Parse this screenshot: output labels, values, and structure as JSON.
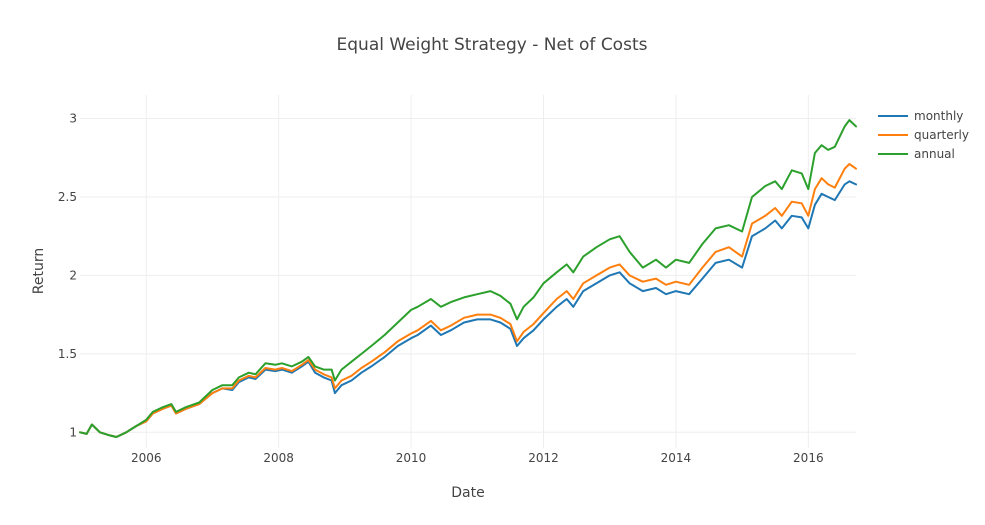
{
  "chart_data": {
    "type": "line",
    "title": "Equal Weight Strategy - Net of Costs",
    "xlabel": "Date",
    "ylabel": "Return",
    "xlim": [
      2005.0,
      2016.72
    ],
    "ylim": [
      0.9,
      3.15
    ],
    "xticks": [
      {
        "value": 2006,
        "label": "2006"
      },
      {
        "value": 2008,
        "label": "2008"
      },
      {
        "value": 2010,
        "label": "2010"
      },
      {
        "value": 2012,
        "label": "2012"
      },
      {
        "value": 2014,
        "label": "2014"
      },
      {
        "value": 2016,
        "label": "2016"
      }
    ],
    "yticks": [
      {
        "value": 1,
        "label": "1"
      },
      {
        "value": 1.5,
        "label": "1.5"
      },
      {
        "value": 2,
        "label": "2"
      },
      {
        "value": 2.5,
        "label": "2.5"
      },
      {
        "value": 3,
        "label": "3"
      }
    ],
    "grid": true,
    "legend_position": "top-right",
    "series": [
      {
        "name": "monthly",
        "color": "#1f77b4",
        "points": [
          [
            2005.0,
            1.0
          ],
          [
            2005.1,
            0.99
          ],
          [
            2005.18,
            1.05
          ],
          [
            2005.3,
            1.0
          ],
          [
            2005.45,
            0.98
          ],
          [
            2005.55,
            0.97
          ],
          [
            2005.7,
            1.0
          ],
          [
            2005.85,
            1.04
          ],
          [
            2006.0,
            1.07
          ],
          [
            2006.1,
            1.12
          ],
          [
            2006.25,
            1.15
          ],
          [
            2006.38,
            1.17
          ],
          [
            2006.45,
            1.12
          ],
          [
            2006.6,
            1.15
          ],
          [
            2006.8,
            1.18
          ],
          [
            2007.0,
            1.25
          ],
          [
            2007.15,
            1.28
          ],
          [
            2007.3,
            1.27
          ],
          [
            2007.4,
            1.32
          ],
          [
            2007.55,
            1.35
          ],
          [
            2007.65,
            1.34
          ],
          [
            2007.8,
            1.4
          ],
          [
            2007.95,
            1.39
          ],
          [
            2008.05,
            1.4
          ],
          [
            2008.2,
            1.38
          ],
          [
            2008.35,
            1.42
          ],
          [
            2008.45,
            1.45
          ],
          [
            2008.55,
            1.38
          ],
          [
            2008.68,
            1.35
          ],
          [
            2008.8,
            1.33
          ],
          [
            2008.85,
            1.25
          ],
          [
            2008.95,
            1.3
          ],
          [
            2009.1,
            1.33
          ],
          [
            2009.25,
            1.38
          ],
          [
            2009.4,
            1.42
          ],
          [
            2009.6,
            1.48
          ],
          [
            2009.8,
            1.55
          ],
          [
            2010.0,
            1.6
          ],
          [
            2010.1,
            1.62
          ],
          [
            2010.3,
            1.68
          ],
          [
            2010.45,
            1.62
          ],
          [
            2010.6,
            1.65
          ],
          [
            2010.8,
            1.7
          ],
          [
            2011.0,
            1.72
          ],
          [
            2011.2,
            1.72
          ],
          [
            2011.35,
            1.7
          ],
          [
            2011.5,
            1.66
          ],
          [
            2011.6,
            1.55
          ],
          [
            2011.7,
            1.6
          ],
          [
            2011.85,
            1.65
          ],
          [
            2012.0,
            1.72
          ],
          [
            2012.2,
            1.8
          ],
          [
            2012.35,
            1.85
          ],
          [
            2012.45,
            1.8
          ],
          [
            2012.6,
            1.9
          ],
          [
            2012.8,
            1.95
          ],
          [
            2013.0,
            2.0
          ],
          [
            2013.15,
            2.02
          ],
          [
            2013.3,
            1.95
          ],
          [
            2013.5,
            1.9
          ],
          [
            2013.7,
            1.92
          ],
          [
            2013.85,
            1.88
          ],
          [
            2014.0,
            1.9
          ],
          [
            2014.2,
            1.88
          ],
          [
            2014.4,
            1.98
          ],
          [
            2014.6,
            2.08
          ],
          [
            2014.8,
            2.1
          ],
          [
            2015.0,
            2.05
          ],
          [
            2015.15,
            2.25
          ],
          [
            2015.35,
            2.3
          ],
          [
            2015.5,
            2.35
          ],
          [
            2015.6,
            2.3
          ],
          [
            2015.75,
            2.38
          ],
          [
            2015.9,
            2.37
          ],
          [
            2016.0,
            2.3
          ],
          [
            2016.1,
            2.45
          ],
          [
            2016.2,
            2.52
          ],
          [
            2016.3,
            2.5
          ],
          [
            2016.4,
            2.48
          ],
          [
            2016.55,
            2.58
          ],
          [
            2016.62,
            2.6
          ],
          [
            2016.72,
            2.58
          ]
        ]
      },
      {
        "name": "quarterly",
        "color": "#ff7f0e",
        "points": [
          [
            2005.0,
            1.0
          ],
          [
            2005.1,
            0.99
          ],
          [
            2005.18,
            1.05
          ],
          [
            2005.3,
            1.0
          ],
          [
            2005.45,
            0.98
          ],
          [
            2005.55,
            0.97
          ],
          [
            2005.7,
            1.0
          ],
          [
            2005.85,
            1.04
          ],
          [
            2006.0,
            1.07
          ],
          [
            2006.1,
            1.12
          ],
          [
            2006.25,
            1.15
          ],
          [
            2006.38,
            1.17
          ],
          [
            2006.45,
            1.12
          ],
          [
            2006.6,
            1.15
          ],
          [
            2006.8,
            1.18
          ],
          [
            2007.0,
            1.25
          ],
          [
            2007.15,
            1.28
          ],
          [
            2007.3,
            1.28
          ],
          [
            2007.4,
            1.33
          ],
          [
            2007.55,
            1.36
          ],
          [
            2007.65,
            1.35
          ],
          [
            2007.8,
            1.41
          ],
          [
            2007.95,
            1.4
          ],
          [
            2008.05,
            1.41
          ],
          [
            2008.2,
            1.39
          ],
          [
            2008.35,
            1.43
          ],
          [
            2008.45,
            1.46
          ],
          [
            2008.55,
            1.4
          ],
          [
            2008.68,
            1.37
          ],
          [
            2008.8,
            1.35
          ],
          [
            2008.85,
            1.28
          ],
          [
            2008.95,
            1.33
          ],
          [
            2009.1,
            1.36
          ],
          [
            2009.25,
            1.41
          ],
          [
            2009.4,
            1.45
          ],
          [
            2009.6,
            1.51
          ],
          [
            2009.8,
            1.58
          ],
          [
            2010.0,
            1.63
          ],
          [
            2010.1,
            1.65
          ],
          [
            2010.3,
            1.71
          ],
          [
            2010.45,
            1.65
          ],
          [
            2010.6,
            1.68
          ],
          [
            2010.8,
            1.73
          ],
          [
            2011.0,
            1.75
          ],
          [
            2011.2,
            1.75
          ],
          [
            2011.35,
            1.73
          ],
          [
            2011.5,
            1.69
          ],
          [
            2011.6,
            1.58
          ],
          [
            2011.7,
            1.64
          ],
          [
            2011.85,
            1.69
          ],
          [
            2012.0,
            1.76
          ],
          [
            2012.2,
            1.85
          ],
          [
            2012.35,
            1.9
          ],
          [
            2012.45,
            1.85
          ],
          [
            2012.6,
            1.95
          ],
          [
            2012.8,
            2.0
          ],
          [
            2013.0,
            2.05
          ],
          [
            2013.15,
            2.07
          ],
          [
            2013.3,
            2.0
          ],
          [
            2013.5,
            1.96
          ],
          [
            2013.7,
            1.98
          ],
          [
            2013.85,
            1.94
          ],
          [
            2014.0,
            1.96
          ],
          [
            2014.2,
            1.94
          ],
          [
            2014.4,
            2.05
          ],
          [
            2014.6,
            2.15
          ],
          [
            2014.8,
            2.18
          ],
          [
            2015.0,
            2.12
          ],
          [
            2015.15,
            2.33
          ],
          [
            2015.35,
            2.38
          ],
          [
            2015.5,
            2.43
          ],
          [
            2015.6,
            2.38
          ],
          [
            2015.75,
            2.47
          ],
          [
            2015.9,
            2.46
          ],
          [
            2016.0,
            2.38
          ],
          [
            2016.1,
            2.55
          ],
          [
            2016.2,
            2.62
          ],
          [
            2016.3,
            2.58
          ],
          [
            2016.4,
            2.56
          ],
          [
            2016.55,
            2.68
          ],
          [
            2016.62,
            2.71
          ],
          [
            2016.72,
            2.68
          ]
        ]
      },
      {
        "name": "annual",
        "color": "#2ca02c",
        "points": [
          [
            2005.0,
            1.0
          ],
          [
            2005.1,
            0.99
          ],
          [
            2005.18,
            1.05
          ],
          [
            2005.3,
            1.0
          ],
          [
            2005.45,
            0.98
          ],
          [
            2005.55,
            0.97
          ],
          [
            2005.7,
            1.0
          ],
          [
            2005.85,
            1.04
          ],
          [
            2006.0,
            1.08
          ],
          [
            2006.1,
            1.13
          ],
          [
            2006.25,
            1.16
          ],
          [
            2006.38,
            1.18
          ],
          [
            2006.45,
            1.13
          ],
          [
            2006.6,
            1.16
          ],
          [
            2006.8,
            1.19
          ],
          [
            2007.0,
            1.27
          ],
          [
            2007.15,
            1.3
          ],
          [
            2007.3,
            1.3
          ],
          [
            2007.4,
            1.35
          ],
          [
            2007.55,
            1.38
          ],
          [
            2007.65,
            1.37
          ],
          [
            2007.8,
            1.44
          ],
          [
            2007.95,
            1.43
          ],
          [
            2008.05,
            1.44
          ],
          [
            2008.2,
            1.42
          ],
          [
            2008.35,
            1.45
          ],
          [
            2008.45,
            1.48
          ],
          [
            2008.55,
            1.42
          ],
          [
            2008.68,
            1.4
          ],
          [
            2008.8,
            1.4
          ],
          [
            2008.85,
            1.33
          ],
          [
            2008.95,
            1.4
          ],
          [
            2009.1,
            1.45
          ],
          [
            2009.25,
            1.5
          ],
          [
            2009.4,
            1.55
          ],
          [
            2009.6,
            1.62
          ],
          [
            2009.8,
            1.7
          ],
          [
            2010.0,
            1.78
          ],
          [
            2010.1,
            1.8
          ],
          [
            2010.3,
            1.85
          ],
          [
            2010.45,
            1.8
          ],
          [
            2010.6,
            1.83
          ],
          [
            2010.8,
            1.86
          ],
          [
            2011.0,
            1.88
          ],
          [
            2011.2,
            1.9
          ],
          [
            2011.35,
            1.87
          ],
          [
            2011.5,
            1.82
          ],
          [
            2011.6,
            1.72
          ],
          [
            2011.7,
            1.8
          ],
          [
            2011.85,
            1.86
          ],
          [
            2012.0,
            1.95
          ],
          [
            2012.2,
            2.02
          ],
          [
            2012.35,
            2.07
          ],
          [
            2012.45,
            2.02
          ],
          [
            2012.6,
            2.12
          ],
          [
            2012.8,
            2.18
          ],
          [
            2013.0,
            2.23
          ],
          [
            2013.15,
            2.25
          ],
          [
            2013.3,
            2.15
          ],
          [
            2013.5,
            2.05
          ],
          [
            2013.7,
            2.1
          ],
          [
            2013.85,
            2.05
          ],
          [
            2014.0,
            2.1
          ],
          [
            2014.2,
            2.08
          ],
          [
            2014.4,
            2.2
          ],
          [
            2014.6,
            2.3
          ],
          [
            2014.8,
            2.32
          ],
          [
            2015.0,
            2.28
          ],
          [
            2015.15,
            2.5
          ],
          [
            2015.35,
            2.57
          ],
          [
            2015.5,
            2.6
          ],
          [
            2015.6,
            2.55
          ],
          [
            2015.75,
            2.67
          ],
          [
            2015.9,
            2.65
          ],
          [
            2016.0,
            2.55
          ],
          [
            2016.1,
            2.78
          ],
          [
            2016.2,
            2.83
          ],
          [
            2016.3,
            2.8
          ],
          [
            2016.4,
            2.82
          ],
          [
            2016.55,
            2.95
          ],
          [
            2016.62,
            2.99
          ],
          [
            2016.72,
            2.95
          ]
        ]
      }
    ]
  }
}
